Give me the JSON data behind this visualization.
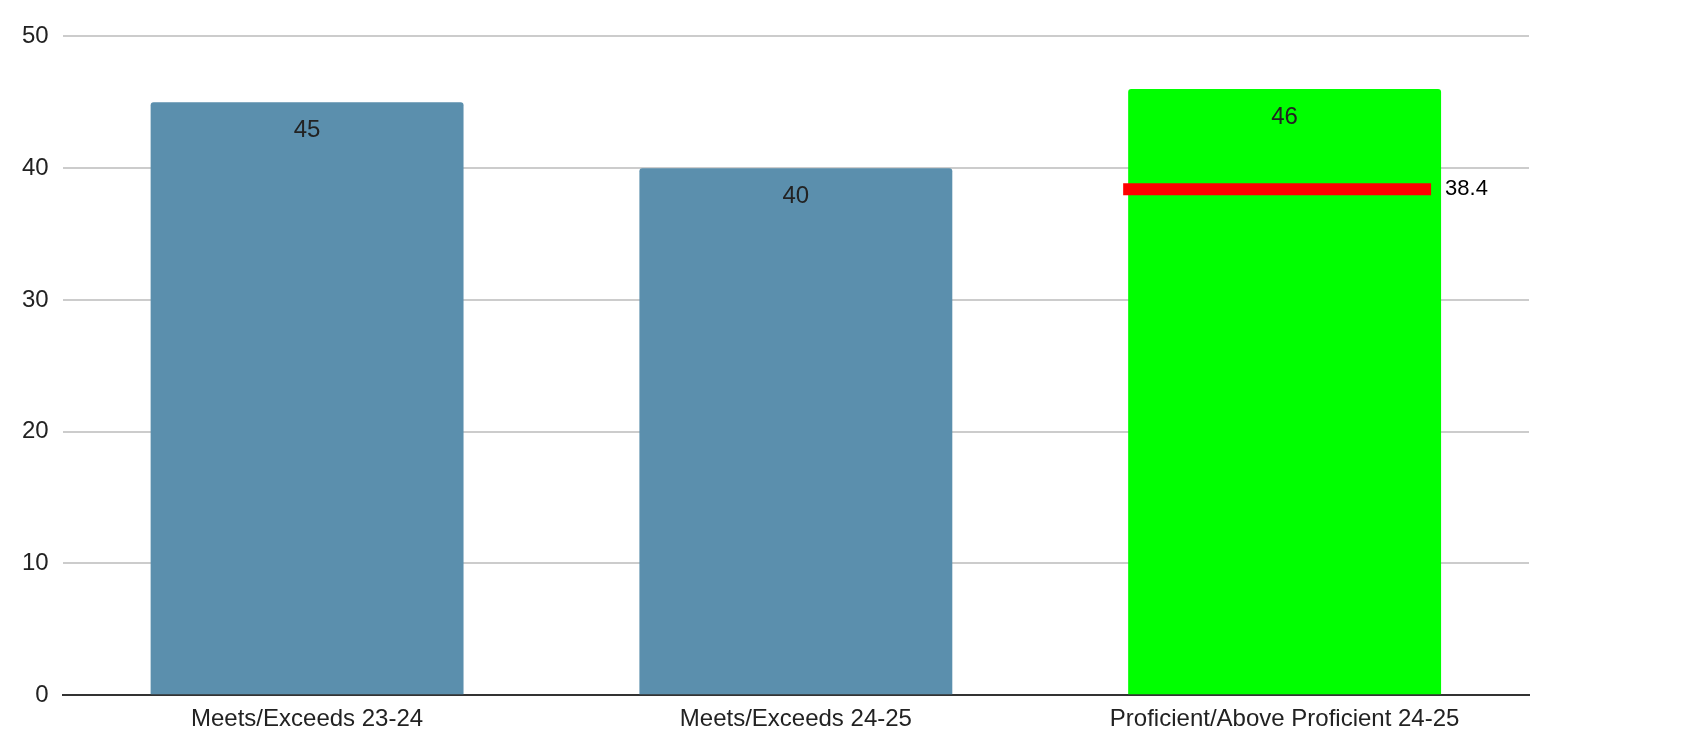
{
  "chart_data": {
    "type": "bar",
    "categories": [
      "Meets/Exceeds 23-24",
      "Meets/Exceeds 24-25",
      "Proficient/Above Proficient 24-25"
    ],
    "values": [
      45,
      40,
      46
    ],
    "colors": [
      "#5b8fad",
      "#5b8fad",
      "#00ff00"
    ],
    "ylim": [
      0,
      50
    ],
    "yticks": [
      0,
      10,
      20,
      30,
      40,
      50
    ],
    "grid": "y",
    "data_labels": true,
    "ref_lines": [
      {
        "axis": "y",
        "value": 38.4,
        "label": "38.4",
        "color": "#ff0000"
      }
    ]
  }
}
